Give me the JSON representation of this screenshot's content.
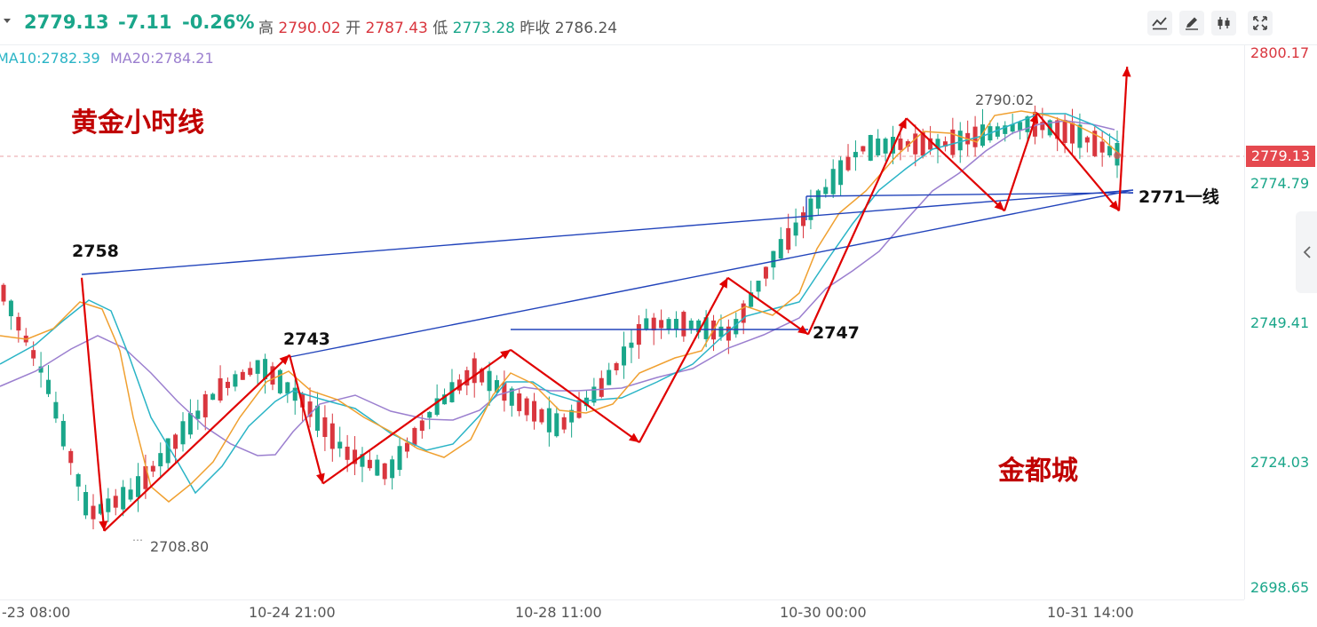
{
  "quote": {
    "price": "2779.13",
    "change": "-7.11",
    "change_pct": "-0.26%",
    "high_label": "高",
    "high": "2790.02",
    "open_label": "开",
    "open": "2787.43",
    "low_label": "低",
    "low": "2773.28",
    "prev_close_label": "昨收",
    "prev_close": "2786.24"
  },
  "toolbar": {
    "icons": [
      "chart-type-icon",
      "pencil-icon",
      "candlestick-icon",
      "fullscreen-icon"
    ]
  },
  "indicators": {
    "ma10": "MA10:2782.39",
    "ma20": "MA20:2784.21"
  },
  "axes": {
    "y_labels": [
      "2800.17",
      "2774.79",
      "2749.41",
      "2724.03",
      "2698.65"
    ],
    "x_labels": [
      "-23 08:00",
      "10-24 21:00",
      "10-28 11:00",
      "10-30 00:00",
      "10-31 14:00"
    ],
    "current_price_tag": "2779.13"
  },
  "annotations": {
    "title": "黄金小时线",
    "watermark": "金都城",
    "label_2758": "2758",
    "label_2743": "2743",
    "label_2747": "2747",
    "label_2771": "2771一线",
    "max_marker": "2790.02",
    "min_marker": "2708.80"
  },
  "colors": {
    "up": "#d9363e",
    "down": "#1aa68a",
    "ma5": "#f0a030",
    "ma10": "#2ab4c6",
    "ma20": "#9b7fcf",
    "trend": "#e00000",
    "support": "#2244bb"
  },
  "chart_data": {
    "type": "candlestick",
    "title": "黄金小时线",
    "ylim": [
      2696,
      2803
    ],
    "grid": false,
    "ma5_trend": [
      2755,
      2738,
      2712,
      2716,
      2726,
      2736,
      2741,
      2734,
      2724,
      2720,
      2732,
      2740,
      2734,
      2729,
      2737,
      2749,
      2749,
      2747,
      2762,
      2773,
      2783,
      2784,
      2784,
      2786,
      2788,
      2786,
      2782
    ],
    "zigzag": [
      {
        "date": "10-23 08:00",
        "label": "",
        "value": 2758
      },
      {
        "date": "10-23 12:00",
        "label": "",
        "value": 2708.8
      },
      {
        "date": "10-24 21:00",
        "label": "",
        "value": 2743
      },
      {
        "date": "10-25 10:00",
        "label": "",
        "value": 2718
      },
      {
        "date": "10-28 11:00",
        "label": "",
        "value": 2744
      },
      {
        "date": "10-29 03:00",
        "label": "",
        "value": 2726
      },
      {
        "date": "10-29 14:00",
        "label": "",
        "value": 2758
      },
      {
        "date": "10-30 00:00",
        "label": "",
        "value": 2747
      },
      {
        "date": "10-30 12:00",
        "label": "",
        "value": 2789
      },
      {
        "date": "10-31 00:00",
        "label": "",
        "value": 2771
      },
      {
        "date": "10-31 04:00",
        "label": "",
        "value": 2790
      },
      {
        "date": "10-31 14:00",
        "label": "",
        "value": 2771
      },
      {
        "date": "10-31 15:00",
        "label": "",
        "value": 2799
      }
    ],
    "support_lines": [
      {
        "from": [
          "10-23 08:00",
          2758
        ],
        "to": [
          "10-31 14:00",
          2771
        ]
      },
      {
        "from": [
          "10-24 21:00",
          2743
        ],
        "to": [
          "10-31 14:00",
          2771
        ]
      },
      {
        "from": [
          "10-28 11:00",
          2744
        ],
        "to": [
          "10-30 00:00",
          2744
        ]
      },
      {
        "from": [
          "10-30 00:00",
          2770
        ],
        "to": [
          "10-31 14:00",
          2771
        ]
      }
    ]
  }
}
